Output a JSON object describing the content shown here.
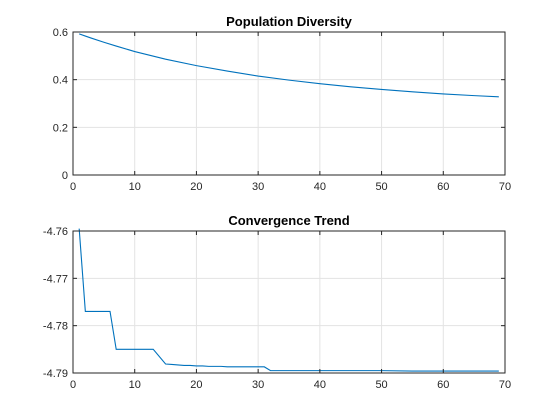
{
  "chart_data": [
    {
      "type": "line",
      "title": "Population Diversity",
      "xlabel": "",
      "ylabel": "",
      "xlim": [
        0,
        70
      ],
      "ylim": [
        0,
        0.6
      ],
      "xticks": [
        0,
        10,
        20,
        30,
        40,
        50,
        60,
        70
      ],
      "yticks": [
        0,
        0.2,
        0.4,
        0.6
      ],
      "xtick_labels": [
        "0",
        "10",
        "20",
        "30",
        "40",
        "50",
        "60",
        "70"
      ],
      "ytick_labels": [
        "0",
        "0.2",
        "0.4",
        "0.6"
      ],
      "grid": true,
      "line_color": "#0072BD",
      "series": [
        {
          "x": [
            1,
            2,
            3,
            5,
            7,
            10,
            15,
            20,
            25,
            30,
            35,
            40,
            45,
            50,
            55,
            60,
            65,
            69
          ],
          "y": [
            0.592,
            0.583,
            0.574,
            0.557,
            0.541,
            0.518,
            0.486,
            0.459,
            0.436,
            0.415,
            0.398,
            0.383,
            0.37,
            0.359,
            0.349,
            0.34,
            0.333,
            0.328
          ]
        }
      ]
    },
    {
      "type": "line",
      "title": "Convergence Trend",
      "xlabel": "",
      "ylabel": "",
      "xlim": [
        0,
        70
      ],
      "ylim": [
        -4.79,
        -4.76
      ],
      "xticks": [
        0,
        10,
        20,
        30,
        40,
        50,
        60,
        70
      ],
      "yticks": [
        -4.79,
        -4.78,
        -4.77,
        -4.76
      ],
      "xtick_labels": [
        "0",
        "10",
        "20",
        "30",
        "40",
        "50",
        "60",
        "70"
      ],
      "ytick_labels": [
        "-4.79",
        "-4.78",
        "-4.77",
        "-4.76"
      ],
      "grid": true,
      "line_color": "#0072BD",
      "series": [
        {
          "x": [
            1,
            2,
            6,
            7,
            13,
            15,
            16,
            17,
            18,
            19,
            20,
            21,
            22,
            23,
            24,
            25,
            26,
            27,
            28,
            29,
            30,
            31,
            32,
            35,
            40,
            45,
            50,
            55,
            60,
            65,
            69
          ],
          "y": [
            -4.7595,
            -4.777,
            -4.777,
            -4.785,
            -4.785,
            -4.7881,
            -4.7882,
            -4.7883,
            -4.7884,
            -4.7884,
            -4.7885,
            -4.7885,
            -4.7886,
            -4.7886,
            -4.7886,
            -4.7887,
            -4.7887,
            -4.7887,
            -4.7887,
            -4.7887,
            -4.7887,
            -4.7887,
            -4.7895,
            -4.7895,
            -4.7895,
            -4.7895,
            -4.7895,
            -4.7896,
            -4.7896,
            -4.7896,
            -4.7896
          ]
        }
      ]
    }
  ]
}
